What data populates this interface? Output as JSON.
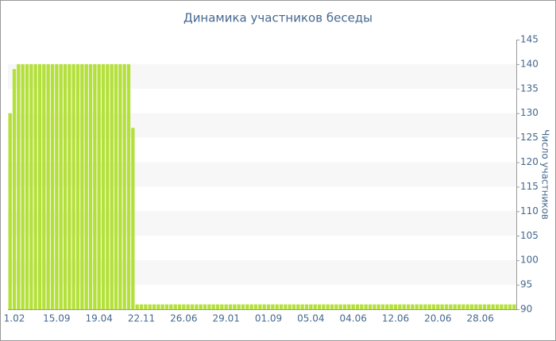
{
  "chart_data": {
    "type": "bar",
    "title": "Динамика участников беседы",
    "y_label": "Число участников",
    "categories": [
      null,
      "1.02",
      null,
      null,
      null,
      null,
      null,
      null,
      null,
      null,
      null,
      "15.09",
      null,
      null,
      null,
      null,
      null,
      null,
      null,
      null,
      null,
      "19.04",
      null,
      null,
      null,
      null,
      null,
      null,
      null,
      null,
      null,
      "22.11",
      null,
      null,
      null,
      null,
      null,
      null,
      null,
      null,
      null,
      "26.06",
      null,
      null,
      null,
      null,
      null,
      null,
      null,
      null,
      null,
      "29.01",
      null,
      null,
      null,
      null,
      null,
      null,
      null,
      null,
      null,
      "01.09",
      null,
      null,
      null,
      null,
      null,
      null,
      null,
      null,
      null,
      "05.04",
      null,
      null,
      null,
      null,
      null,
      null,
      null,
      null,
      null,
      "04.06",
      null,
      null,
      null,
      null,
      null,
      null,
      null,
      null,
      null,
      "12.06",
      null,
      null,
      null,
      null,
      null,
      null,
      null,
      null,
      null,
      "20.06",
      null,
      null,
      null,
      null,
      null,
      null,
      null,
      null,
      null,
      "28.06",
      null,
      null,
      null,
      null,
      null,
      null,
      null,
      null
    ],
    "values": [
      130,
      139,
      140,
      140,
      140,
      140,
      140,
      140,
      140,
      140,
      140,
      140,
      140,
      140,
      140,
      140,
      140,
      140,
      140,
      140,
      140,
      140,
      140,
      140,
      140,
      140,
      140,
      140,
      140,
      127,
      91,
      91,
      91,
      91,
      91,
      91,
      91,
      91,
      91,
      91,
      91,
      91,
      91,
      91,
      91,
      91,
      91,
      91,
      91,
      91,
      91,
      91,
      91,
      91,
      91,
      91,
      91,
      91,
      91,
      91,
      91,
      91,
      91,
      91,
      91,
      91,
      91,
      91,
      91,
      91,
      91,
      91,
      91,
      91,
      91,
      91,
      91,
      91,
      91,
      91,
      91,
      91,
      91,
      91,
      91,
      91,
      91,
      91,
      91,
      91,
      91,
      91,
      91,
      91,
      91,
      91,
      91,
      91,
      91,
      91,
      91,
      91,
      91,
      91,
      91,
      91,
      91,
      91,
      91,
      91,
      91,
      91,
      91,
      91,
      91,
      91,
      91,
      91,
      91,
      91
    ],
    "color": "#b4e03a",
    "ylim": [
      90,
      145
    ],
    "yticks": [
      90,
      95,
      100,
      105,
      110,
      115,
      120,
      125,
      130,
      135,
      140,
      145
    ],
    "y_axis_side": "right",
    "grid": true
  }
}
